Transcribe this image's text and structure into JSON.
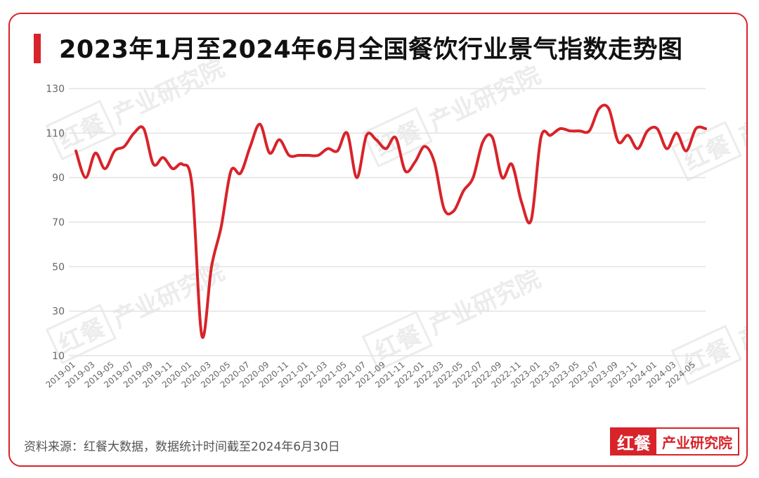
{
  "title": "2023年1月至2024年6月全国餐饮行业景气指数走势图",
  "source_note": "资料来源：红餐大数据，数据统计时间截至2024年6月30日",
  "logo": {
    "mark": "红餐",
    "text": "产业研究院"
  },
  "watermark": {
    "mark": "红餐",
    "text": "产业研究院"
  },
  "colors": {
    "accent": "#d8232a",
    "line": "#d8232a",
    "grid": "#e3e3e3",
    "axis_text": "#666666"
  },
  "chart_data": {
    "type": "line",
    "title": "2023年1月至2024年6月全国餐饮行业景气指数走势图",
    "xlabel": "",
    "ylabel": "",
    "ylim": [
      10,
      130
    ],
    "yticks": [
      10,
      30,
      50,
      70,
      90,
      110,
      130
    ],
    "grid": true,
    "x": [
      "2019-01",
      "2019-02",
      "2019-03",
      "2019-04",
      "2019-05",
      "2019-06",
      "2019-07",
      "2019-08",
      "2019-09",
      "2019-10",
      "2019-11",
      "2019-12",
      "2020-01",
      "2020-02",
      "2020-03",
      "2020-04",
      "2020-05",
      "2020-06",
      "2020-07",
      "2020-08",
      "2020-09",
      "2020-10",
      "2020-11",
      "2020-12",
      "2021-01",
      "2021-02",
      "2021-03",
      "2021-04",
      "2021-05",
      "2021-06",
      "2021-07",
      "2021-08",
      "2021-09",
      "2021-10",
      "2021-11",
      "2021-12",
      "2022-01",
      "2022-02",
      "2022-03",
      "2022-04",
      "2022-05",
      "2022-06",
      "2022-07",
      "2022-08",
      "2022-09",
      "2022-10",
      "2022-11",
      "2022-12",
      "2023-01",
      "2023-02",
      "2023-03",
      "2023-04",
      "2023-05",
      "2023-06",
      "2023-07",
      "2023-08",
      "2023-09",
      "2023-10",
      "2023-11",
      "2023-12",
      "2024-01",
      "2024-02",
      "2024-03",
      "2024-04",
      "2024-05",
      "2024-06"
    ],
    "x_tick_labels": [
      "2019-01",
      "2019-03",
      "2019-05",
      "2019-07",
      "2019-09",
      "2019-11",
      "2020-01",
      "2020-03",
      "2020-05",
      "2020-07",
      "2020-09",
      "2020-11",
      "2021-01",
      "2021-03",
      "2021-05",
      "2021-07",
      "2021-09",
      "2021-11",
      "2022-01",
      "2022-03",
      "2022-05",
      "2022-07",
      "2022-09",
      "2022-11",
      "2023-01",
      "2023-03",
      "2023-05",
      "2023-07",
      "2023-09",
      "2023-11",
      "2024-01",
      "2024-03",
      "2024-05"
    ],
    "series": [
      {
        "values": [
          102,
          90,
          101,
          94,
          102,
          104,
          110,
          112,
          96,
          99,
          94,
          96,
          86,
          19,
          50,
          68,
          93,
          92,
          104,
          114,
          101,
          107,
          100,
          100,
          100,
          100,
          103,
          102,
          110,
          90,
          109,
          107,
          103,
          108,
          93,
          97,
          104,
          97,
          76,
          75,
          84,
          90,
          106,
          108,
          90,
          96,
          79,
          71,
          108,
          109,
          112,
          111,
          111,
          111,
          121,
          121,
          106,
          109,
          103,
          111,
          112,
          103,
          110,
          102,
          112,
          112
        ]
      }
    ]
  }
}
